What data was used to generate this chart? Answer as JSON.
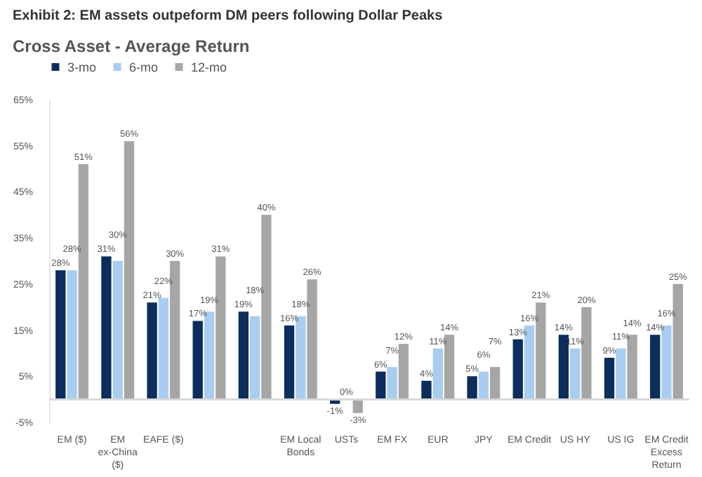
{
  "chart_data": {
    "type": "bar",
    "title": "Exhibit 2: EM assets outpeform DM peers following Dollar Peaks",
    "subtitle": "Cross Asset - Average Return",
    "categories": [
      "EM ($)",
      "EM ex-China ($)",
      "EAFE ($)",
      null,
      null,
      "EM Local Bonds",
      "USTs",
      "EM FX",
      "EUR",
      "JPY",
      "EM Credit",
      "US HY",
      "US IG",
      "EM Credit Excess Return"
    ],
    "series": [
      {
        "name": "3-mo",
        "color": "#0d2d5a",
        "values": [
          28,
          31,
          21,
          17,
          19,
          16,
          -1,
          6,
          4,
          5,
          13,
          14,
          9,
          14
        ],
        "value_labels": [
          "28%",
          "31%",
          "21%",
          "17%",
          "19%",
          "16%",
          "-1%",
          "6%",
          "4%",
          "5%",
          "13%",
          "14%",
          "9%",
          "14%"
        ]
      },
      {
        "name": "6-mo",
        "color": "#a9cdee",
        "values": [
          28,
          30,
          22,
          19,
          18,
          18,
          0,
          7,
          11,
          6,
          16,
          11,
          11,
          16
        ],
        "value_labels": [
          "28%",
          "30%",
          "22%",
          "19%",
          "18%",
          "18%",
          "0%",
          "7%",
          "11%",
          "6%",
          "16%",
          "11%",
          "11%",
          "16%"
        ]
      },
      {
        "name": "12-mo",
        "color": "#a6a6a6",
        "values": [
          51,
          56,
          30,
          31,
          40,
          26,
          -3,
          12,
          14,
          7,
          21,
          20,
          14,
          25
        ],
        "value_labels": [
          "51%",
          "56%",
          "30%",
          "31%",
          "40%",
          "26%",
          "-3%",
          "12%",
          "14%",
          "7%",
          "21%",
          "20%",
          "14%",
          "25%"
        ]
      }
    ],
    "ylim": [
      -5,
      65
    ],
    "yticks": [
      {
        "value": -5,
        "label": "-5%"
      },
      {
        "value": 5,
        "label": "5%"
      },
      {
        "value": 15,
        "label": "15%"
      },
      {
        "value": 25,
        "label": "25%"
      },
      {
        "value": 35,
        "label": "35%"
      },
      {
        "value": 45,
        "label": "45%"
      },
      {
        "value": 55,
        "label": "55%"
      },
      {
        "value": 65,
        "label": "65%"
      }
    ],
    "legend": "top",
    "grid": false
  }
}
